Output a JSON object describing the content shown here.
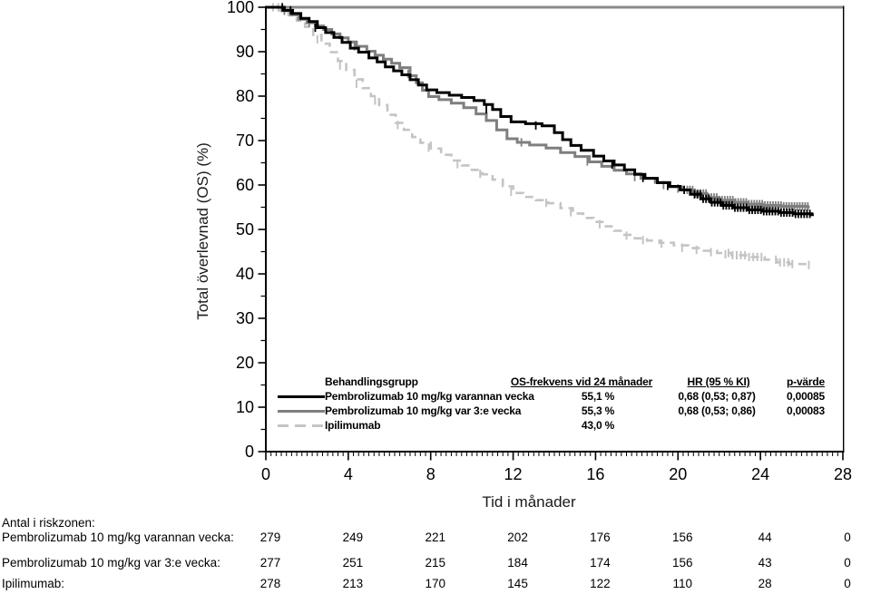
{
  "figure_colors": {
    "axis": "#000000",
    "top_border": "#8a8a8a",
    "series_black": "#000000",
    "series_gray": "#7f7f7f",
    "series_lightgray": "#c4c4c4"
  },
  "legend": {
    "headers": {
      "group": "Behandlingsgrupp",
      "os": "OS-frekvens vid 24 månader",
      "hr": "HR (95 % KI)",
      "p": "p-värde"
    },
    "rows": [
      {
        "group": "Pembrolizumab 10 mg/kg varannan vecka",
        "os": "55,1 %",
        "hr": "0,68 (0,53; 0,87)",
        "p": "0,00085"
      },
      {
        "group": "Pembrolizumab 10 mg/kg var 3:e vecka",
        "os": "55,3 %",
        "hr": "0,68 (0,53; 0,86)",
        "p": "0,00083"
      },
      {
        "group": "Ipilimumab",
        "os": "43,0 %",
        "hr": "",
        "p": ""
      }
    ]
  },
  "risk_table": {
    "title": "Antal i riskzonen:",
    "rows": [
      {
        "label": "Pembrolizumab 10 mg/kg varannan vecka:",
        "counts": [
          279,
          249,
          221,
          202,
          176,
          156,
          44,
          0
        ]
      },
      {
        "label": "Pembrolizumab 10 mg/kg var 3:e vecka:",
        "counts": [
          277,
          251,
          215,
          184,
          174,
          156,
          43,
          0
        ]
      },
      {
        "label": "Ipilimumab:",
        "counts": [
          278,
          213,
          170,
          145,
          122,
          110,
          28,
          0
        ]
      }
    ]
  },
  "chart_data": {
    "type": "line",
    "subtype": "kaplan-meier-step",
    "title": "",
    "xlabel": "Tid i månader",
    "ylabel": "Total överlevnad (OS) (%)",
    "xlim": [
      0,
      28
    ],
    "ylim": [
      0,
      100
    ],
    "xticks": [
      0,
      4,
      8,
      12,
      16,
      20,
      24,
      28
    ],
    "yticks": [
      0,
      10,
      20,
      30,
      40,
      50,
      60,
      70,
      80,
      90,
      100
    ],
    "x_minor_step": 0.25,
    "y_minor_step": 5,
    "grid": false,
    "legend_position": "inside-lower-middle",
    "series": [
      {
        "name": "Pembrolizumab 10 mg/kg varannan vecka",
        "color": "#000000",
        "dash": "solid",
        "width": 3,
        "points": [
          [
            0,
            100
          ],
          [
            0.9,
            99.3
          ],
          [
            1.3,
            98.6
          ],
          [
            1.7,
            97.5
          ],
          [
            2.1,
            96.8
          ],
          [
            2.5,
            95.4
          ],
          [
            2.9,
            94.3
          ],
          [
            3.3,
            93.2
          ],
          [
            3.7,
            92.1
          ],
          [
            4.1,
            90.8
          ],
          [
            4.5,
            89.9
          ],
          [
            5.0,
            88.6
          ],
          [
            5.4,
            87.7
          ],
          [
            5.8,
            86.6
          ],
          [
            6.2,
            85.7
          ],
          [
            6.6,
            84.8
          ],
          [
            7.0,
            83.7
          ],
          [
            7.4,
            82.5
          ],
          [
            7.8,
            81.4
          ],
          [
            8.3,
            80.8
          ],
          [
            8.9,
            80.2
          ],
          [
            9.5,
            79.7
          ],
          [
            10.1,
            79.0
          ],
          [
            10.6,
            78.1
          ],
          [
            11.0,
            77.0
          ],
          [
            11.4,
            75.4
          ],
          [
            11.9,
            74.2
          ],
          [
            12.6,
            73.8
          ],
          [
            13.4,
            73.3
          ],
          [
            14.0,
            71.8
          ],
          [
            14.4,
            70.2
          ],
          [
            14.8,
            68.9
          ],
          [
            15.3,
            67.8
          ],
          [
            15.9,
            66.5
          ],
          [
            16.4,
            65.4
          ],
          [
            16.9,
            64.5
          ],
          [
            17.4,
            63.4
          ],
          [
            17.9,
            62.4
          ],
          [
            18.4,
            61.5
          ],
          [
            19.0,
            60.5
          ],
          [
            19.6,
            59.7
          ],
          [
            20.1,
            58.9
          ],
          [
            20.6,
            57.9
          ],
          [
            21.1,
            56.9
          ],
          [
            21.6,
            56.1
          ],
          [
            22.1,
            55.4
          ],
          [
            22.7,
            54.9
          ],
          [
            23.4,
            54.4
          ],
          [
            24.1,
            54.1
          ],
          [
            24.9,
            53.8
          ],
          [
            25.6,
            53.5
          ],
          [
            26.5,
            53.3
          ]
        ],
        "censors": [
          [
            0.8,
            100
          ],
          [
            1.2,
            99.3
          ],
          [
            2.4,
            95.4
          ],
          [
            10.7,
            77.0
          ],
          [
            13.1,
            73.4
          ],
          [
            16.8,
            64.6
          ],
          [
            18.3,
            61.6
          ],
          [
            19.5,
            59.8
          ],
          [
            20.3,
            58.9
          ]
        ],
        "censor_runs": [
          {
            "from": 20.8,
            "to": 26.45,
            "step": 0.14
          }
        ]
      },
      {
        "name": "Pembrolizumab 10 mg/kg var 3:e vecka",
        "color": "#7f7f7f",
        "dash": "solid",
        "width": 3,
        "points": [
          [
            0,
            100
          ],
          [
            0.8,
            99.2
          ],
          [
            1.2,
            98.3
          ],
          [
            1.6,
            97.3
          ],
          [
            2.0,
            96.5
          ],
          [
            2.4,
            95.8
          ],
          [
            2.8,
            95.0
          ],
          [
            3.2,
            94.0
          ],
          [
            3.6,
            93.1
          ],
          [
            4.0,
            92.2
          ],
          [
            4.4,
            91.2
          ],
          [
            4.9,
            90.1
          ],
          [
            5.3,
            89.2
          ],
          [
            5.7,
            88.3
          ],
          [
            6.1,
            87.4
          ],
          [
            6.5,
            86.4
          ],
          [
            7.0,
            84.6
          ],
          [
            7.3,
            83.0
          ],
          [
            7.6,
            81.3
          ],
          [
            7.9,
            79.9
          ],
          [
            8.4,
            79.2
          ],
          [
            9.0,
            78.4
          ],
          [
            9.6,
            77.4
          ],
          [
            10.2,
            76.0
          ],
          [
            10.7,
            74.5
          ],
          [
            11.2,
            72.4
          ],
          [
            11.7,
            70.4
          ],
          [
            12.2,
            69.6
          ],
          [
            12.8,
            69.0
          ],
          [
            13.6,
            68.3
          ],
          [
            14.3,
            67.3
          ],
          [
            15.0,
            66.4
          ],
          [
            15.7,
            65.2
          ],
          [
            16.3,
            64.2
          ],
          [
            16.9,
            63.3
          ],
          [
            17.5,
            62.5
          ],
          [
            18.2,
            61.5
          ],
          [
            18.9,
            60.6
          ],
          [
            19.6,
            59.6
          ],
          [
            20.2,
            58.9
          ],
          [
            20.8,
            58.1
          ],
          [
            21.4,
            57.2
          ],
          [
            22.0,
            56.6
          ],
          [
            22.7,
            56.1
          ],
          [
            23.4,
            55.7
          ],
          [
            24.1,
            55.4
          ],
          [
            25.0,
            55.2
          ],
          [
            26.3,
            55.0
          ]
        ],
        "censors": [
          [
            0.9,
            99.2
          ],
          [
            2.1,
            96.4
          ],
          [
            4.3,
            91.2
          ],
          [
            6.9,
            85.0
          ],
          [
            12.4,
            69.6
          ],
          [
            15.6,
            65.3
          ],
          [
            17.9,
            61.8
          ],
          [
            19.3,
            60.0
          ],
          [
            20.0,
            59.2
          ]
        ],
        "censor_runs": [
          {
            "from": 20.45,
            "to": 26.3,
            "step": 0.13
          }
        ]
      },
      {
        "name": "Ipilimumab",
        "color": "#c4c4c4",
        "dash": "dashed",
        "width": 2.6,
        "points": [
          [
            0,
            100
          ],
          [
            0.7,
            99.2
          ],
          [
            1.1,
            98.2
          ],
          [
            1.5,
            97.0
          ],
          [
            1.9,
            95.6
          ],
          [
            2.3,
            93.8
          ],
          [
            2.7,
            91.8
          ],
          [
            3.1,
            89.9
          ],
          [
            3.5,
            87.9
          ],
          [
            3.9,
            85.9
          ],
          [
            4.3,
            83.8
          ],
          [
            4.7,
            81.8
          ],
          [
            5.1,
            80.0
          ],
          [
            5.5,
            78.0
          ],
          [
            5.9,
            75.8
          ],
          [
            6.3,
            74.0
          ],
          [
            6.7,
            72.4
          ],
          [
            7.1,
            70.8
          ],
          [
            7.5,
            69.5
          ],
          [
            8.0,
            68.2
          ],
          [
            8.5,
            66.8
          ],
          [
            9.0,
            65.5
          ],
          [
            9.5,
            64.4
          ],
          [
            10.0,
            63.4
          ],
          [
            10.5,
            62.4
          ],
          [
            11.0,
            61.2
          ],
          [
            11.5,
            59.7
          ],
          [
            12.0,
            58.2
          ],
          [
            12.5,
            57.3
          ],
          [
            13.1,
            56.6
          ],
          [
            13.7,
            55.9
          ],
          [
            14.3,
            54.8
          ],
          [
            14.9,
            53.6
          ],
          [
            15.4,
            52.6
          ],
          [
            15.9,
            51.7
          ],
          [
            16.4,
            50.7
          ],
          [
            16.9,
            49.7
          ],
          [
            17.4,
            48.8
          ],
          [
            17.9,
            48.0
          ],
          [
            18.5,
            47.5
          ],
          [
            19.1,
            47.0
          ],
          [
            19.8,
            46.4
          ],
          [
            20.5,
            45.8
          ],
          [
            21.2,
            45.2
          ],
          [
            21.9,
            44.7
          ],
          [
            22.6,
            44.2
          ],
          [
            23.4,
            43.8
          ],
          [
            24.2,
            43.2
          ],
          [
            24.8,
            42.6
          ],
          [
            25.4,
            42.2
          ],
          [
            26.3,
            42.0
          ]
        ],
        "censors": [
          [
            0.35,
            100
          ],
          [
            0.6,
            100
          ],
          [
            2.5,
            92.8
          ],
          [
            3.6,
            86.9
          ],
          [
            4.4,
            82.8
          ],
          [
            5.3,
            79.0
          ],
          [
            6.4,
            73.5
          ],
          [
            7.9,
            68.4
          ],
          [
            9.3,
            64.7
          ],
          [
            10.4,
            62.5
          ],
          [
            11.9,
            58.5
          ],
          [
            13.6,
            56.0
          ],
          [
            14.8,
            53.9
          ],
          [
            16.2,
            51.2
          ],
          [
            17.5,
            48.6
          ],
          [
            18.3,
            47.6
          ],
          [
            19.2,
            46.8
          ],
          [
            20.2,
            45.9
          ],
          [
            20.9,
            45.4
          ],
          [
            21.6,
            44.9
          ],
          [
            22.3,
            44.4
          ],
          [
            26.35,
            42.0
          ]
        ],
        "censor_runs": [
          {
            "from": 22.45,
            "to": 24.15,
            "step": 0.2
          },
          {
            "from": 24.75,
            "to": 25.65,
            "step": 0.2
          }
        ]
      }
    ]
  }
}
